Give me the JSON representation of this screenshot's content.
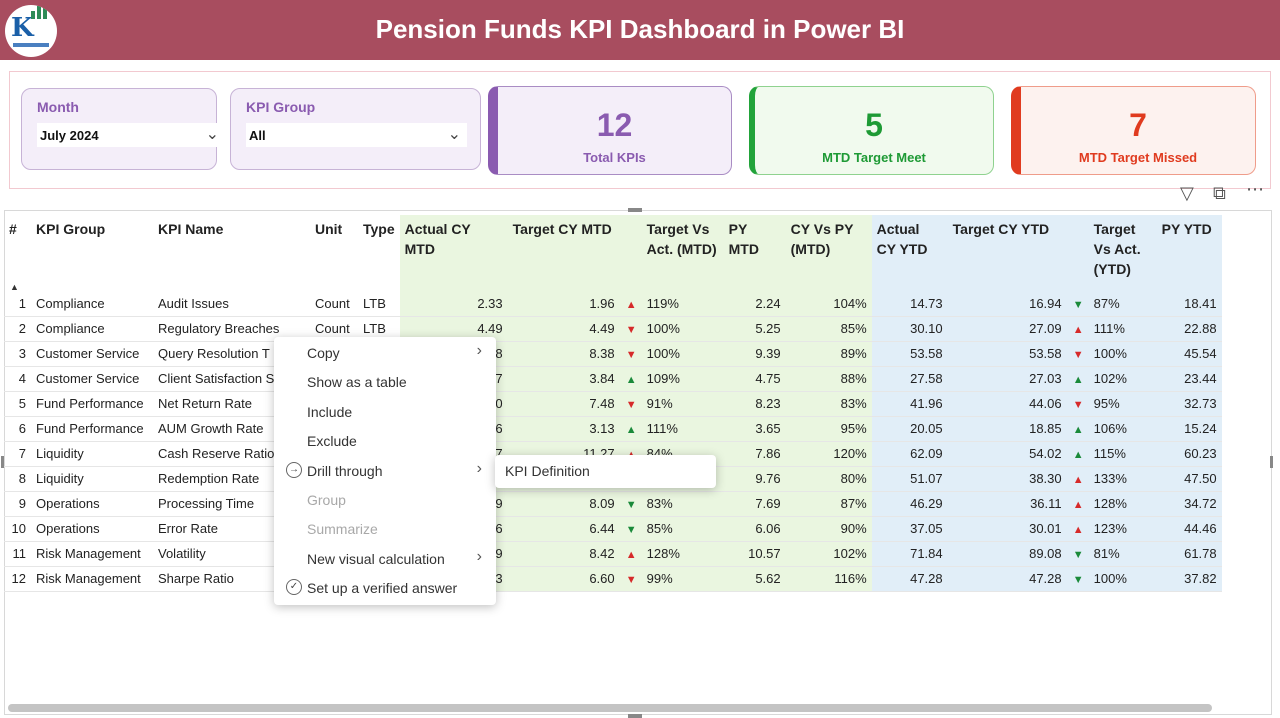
{
  "header": {
    "title": "Pension Funds KPI Dashboard in Power BI",
    "color": "#a84d5f"
  },
  "filters": {
    "month": {
      "label": "Month",
      "value": "July 2024"
    },
    "kpi_group": {
      "label": "KPI Group",
      "value": "All"
    }
  },
  "cards": {
    "total": {
      "value": "12",
      "caption": "Total KPIs",
      "color": "#8a5bb0"
    },
    "meet": {
      "value": "5",
      "caption": "MTD Target Meet",
      "color": "#22a33a"
    },
    "missed": {
      "value": "7",
      "caption": "MTD Target Missed",
      "color": "#e03b1f"
    }
  },
  "table": {
    "headers": {
      "num": "#",
      "group": "KPI Group",
      "name": "KPI Name",
      "unit": "Unit",
      "type": "Type",
      "actual_mtd": "Actual CY MTD",
      "target_mtd": "Target CY MTD",
      "tva_mtd": "Target Vs Act. (MTD)",
      "py_mtd": "PY MTD",
      "cyvspy_mtd": "CY Vs PY (MTD)",
      "actual_ytd": "Actual CY YTD",
      "target_ytd": "Target CY YTD",
      "tva_ytd": "Target Vs Act. (YTD)",
      "py_ytd": "PY YTD"
    },
    "rows": [
      {
        "n": "1",
        "group": "Compliance",
        "name": "Audit Issues",
        "unit": "Count",
        "type": "LTB",
        "am": "2.33",
        "tm": "1.96",
        "im": "up-red",
        "tvam": "119%",
        "pym": "2.24",
        "cvp": "104%",
        "ay": "14.73",
        "ty": "16.94",
        "iy": "down-green",
        "tvay": "87%",
        "pyy": "18.41"
      },
      {
        "n": "2",
        "group": "Compliance",
        "name": "Regulatory Breaches",
        "unit": "Count",
        "type": "LTB",
        "am": "4.49",
        "tm": "4.49",
        "im": "down-red",
        "tvam": "100%",
        "pym": "5.25",
        "cvp": "85%",
        "ay": "30.10",
        "ty": "27.09",
        "iy": "up-red",
        "tvay": "111%",
        "pyy": "22.88"
      },
      {
        "n": "3",
        "group": "Customer Service",
        "name": "Query Resolution T",
        "unit": "",
        "type": "",
        "am": "38",
        "tm": "8.38",
        "im": "down-red",
        "tvam": "100%",
        "pym": "9.39",
        "cvp": "89%",
        "ay": "53.58",
        "ty": "53.58",
        "iy": "down-red",
        "tvay": "100%",
        "pyy": "45.54"
      },
      {
        "n": "4",
        "group": "Customer Service",
        "name": "Client Satisfaction S",
        "unit": "",
        "type": "",
        "am": "17",
        "tm": "3.84",
        "im": "up-green",
        "tvam": "109%",
        "pym": "4.75",
        "cvp": "88%",
        "ay": "27.58",
        "ty": "27.03",
        "iy": "up-green",
        "tvay": "102%",
        "pyy": "23.44"
      },
      {
        "n": "5",
        "group": "Fund Performance",
        "name": "Net Return Rate",
        "unit": "",
        "type": "",
        "am": "30",
        "tm": "7.48",
        "im": "down-red",
        "tvam": "91%",
        "pym": "8.23",
        "cvp": "83%",
        "ay": "41.96",
        "ty": "44.06",
        "iy": "down-red",
        "tvay": "95%",
        "pyy": "32.73"
      },
      {
        "n": "6",
        "group": "Fund Performance",
        "name": "AUM Growth Rate",
        "unit": "",
        "type": "",
        "am": "16",
        "tm": "3.13",
        "im": "up-green",
        "tvam": "111%",
        "pym": "3.65",
        "cvp": "95%",
        "ay": "20.05",
        "ty": "18.85",
        "iy": "up-green",
        "tvay": "106%",
        "pyy": "15.24"
      },
      {
        "n": "7",
        "group": "Liquidity",
        "name": "Cash Reserve Ratio",
        "unit": "",
        "type": "",
        "am": "17",
        "tm": "11.27",
        "im": "up-red",
        "tvam": "84%",
        "pym": "7.86",
        "cvp": "120%",
        "ay": "62.09",
        "ty": "54.02",
        "iy": "up-green",
        "tvay": "115%",
        "pyy": "60.23"
      },
      {
        "n": "8",
        "group": "Liquidity",
        "name": "Redemption Rate",
        "unit": "",
        "type": "",
        "am": "",
        "tm": "",
        "im": "",
        "tvam": "",
        "pym": "9.76",
        "cvp": "80%",
        "ay": "51.07",
        "ty": "38.30",
        "iy": "up-red",
        "tvay": "133%",
        "pyy": "47.50"
      },
      {
        "n": "9",
        "group": "Operations",
        "name": "Processing Time",
        "unit": "",
        "type": "",
        "am": "39",
        "tm": "8.09",
        "im": "down-green",
        "tvam": "83%",
        "pym": "7.69",
        "cvp": "87%",
        "ay": "46.29",
        "ty": "36.11",
        "iy": "up-red",
        "tvay": "128%",
        "pyy": "34.72"
      },
      {
        "n": "10",
        "group": "Operations",
        "name": "Error Rate",
        "unit": "",
        "type": "",
        "am": "46",
        "tm": "6.44",
        "im": "down-green",
        "tvam": "85%",
        "pym": "6.06",
        "cvp": "90%",
        "ay": "37.05",
        "ty": "30.01",
        "iy": "up-red",
        "tvay": "123%",
        "pyy": "44.46"
      },
      {
        "n": "11",
        "group": "Risk Management",
        "name": "Volatility",
        "unit": "",
        "type": "",
        "am": "79",
        "tm": "8.42",
        "im": "up-red",
        "tvam": "128%",
        "pym": "10.57",
        "cvp": "102%",
        "ay": "71.84",
        "ty": "89.08",
        "iy": "down-green",
        "tvay": "81%",
        "pyy": "61.78"
      },
      {
        "n": "12",
        "group": "Risk Management",
        "name": "Sharpe Ratio",
        "unit": "",
        "type": "",
        "am": "53",
        "tm": "6.60",
        "im": "down-red",
        "tvam": "99%",
        "pym": "5.62",
        "cvp": "116%",
        "ay": "47.28",
        "ty": "47.28",
        "iy": "down-green",
        "tvay": "100%",
        "pyy": "37.82"
      }
    ]
  },
  "context_menu": {
    "items": [
      {
        "label": "Copy",
        "submenu": true,
        "disabled": false,
        "icon": ""
      },
      {
        "label": "Show as a table",
        "submenu": false,
        "disabled": false,
        "icon": ""
      },
      {
        "label": "Include",
        "submenu": false,
        "disabled": false,
        "icon": ""
      },
      {
        "label": "Exclude",
        "submenu": false,
        "disabled": false,
        "icon": ""
      },
      {
        "label": "Drill through",
        "submenu": true,
        "disabled": false,
        "icon": "arrow-circle-icon"
      },
      {
        "label": "Group",
        "submenu": false,
        "disabled": true,
        "icon": ""
      },
      {
        "label": "Summarize",
        "submenu": false,
        "disabled": true,
        "icon": ""
      },
      {
        "label": "New visual calculation",
        "submenu": true,
        "disabled": false,
        "icon": ""
      },
      {
        "label": "Set up a verified answer",
        "submenu": false,
        "disabled": false,
        "icon": "check-circle-icon"
      }
    ],
    "submenu": {
      "label": "KPI Definition"
    }
  }
}
